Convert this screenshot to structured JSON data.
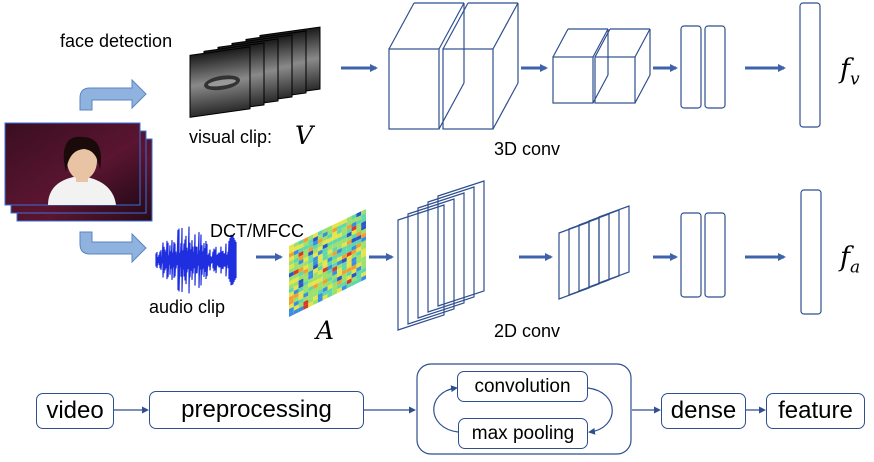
{
  "labels": {
    "face_detection": "face detection",
    "visual_clip": "visual clip:",
    "visual_var": "V",
    "dct_mfcc": "DCT/MFCC",
    "audio_clip": "audio clip",
    "audio_var": "A",
    "conv3d": "3D conv",
    "conv2d": "2D conv",
    "fv_base": "f",
    "fv_sub": "v",
    "fa_base": "f",
    "fa_sub": "a"
  },
  "pipeline": {
    "video": "video",
    "preprocessing": "preprocessing",
    "convolution": "convolution",
    "max_pooling": "max pooling",
    "dense": "dense",
    "feature": "feature"
  },
  "colors": {
    "line": "#2f4f8f",
    "arrow": "#3f63aa",
    "callout_arrow": "#8fb2df",
    "waveform": "#1f2fe0",
    "frame_border": "#3a6fd8"
  }
}
